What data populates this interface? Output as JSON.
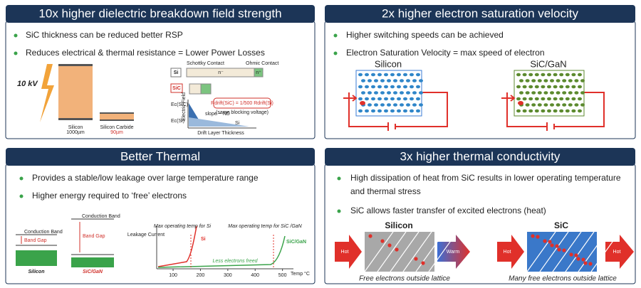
{
  "panels": [
    {
      "title": "10x higher dielectric breakdown field strength",
      "bullets": [
        "SiC thickness can be reduced better RSP",
        "Reduces electrical & thermal resistance = Lower Power Losses"
      ],
      "diagram": {
        "voltage": "10 kV",
        "si_label": "Silicon",
        "si_thickness": "1000µm",
        "sic_label": "Silicon Carbide",
        "sic_thickness": "90µm",
        "row_si": "Si",
        "row_sic": "SiC",
        "schottky": "Schottky Contact",
        "ohmic": "Ohmic Contact",
        "n_minus": "n⁻",
        "n_plus": "n⁺",
        "ec_sic": "Ec(SiC)",
        "ec_si": "Ec(Si)",
        "slope": "slope ~ ND",
        "drift": "Drift Layer Thickness",
        "field": "Electric Field",
        "formula": "Rdrift(SiC) = 1/500 Rdrift(Si)",
        "note": "(same blocking voltage)",
        "curve_si": "Si"
      }
    },
    {
      "title": "2x higher electron saturation velocity",
      "bullets": [
        "Higher switching speeds can be achieved",
        "Electron Saturation Velocity = max speed of electron"
      ],
      "diagram": {
        "left": "Silicon",
        "right": "SiC/GaN"
      }
    },
    {
      "title": "Better Thermal",
      "bullets": [
        "Provides a stable/low leakage over large temperature range",
        "Higher energy required to ‘free’ electrons"
      ],
      "diagram": {
        "cb_si": "Conduction Band",
        "gap_si": "Band Gap",
        "si": "Silicon",
        "cb_sic": "Conduction Band",
        "gap_sic": "Band Gap",
        "sic": "SiC/GaN",
        "y_label": "Leakage Current",
        "x_label": "Temp °C",
        "max_si": "Max operating temp for Si",
        "max_sic": "Max operating temp for SiC /GaN",
        "curve_si": "Si",
        "curve_sic": "SiC/GaN",
        "less": "Less electrons freed",
        "xlim": [
          40,
          540
        ],
        "xticks": [
          100,
          200,
          300,
          400,
          500
        ]
      }
    },
    {
      "title": "3x higher thermal conductivity",
      "bullets": [
        "High dissipation of heat from SiC results in lower operating temperature",
        "and thermal stress",
        "SiC allows faster transfer of excited electrons (heat)"
      ],
      "diagram": {
        "left": "Silicon",
        "right": "SiC",
        "hot1": "Hot",
        "warm": "Warm",
        "hot2": "Hot",
        "hot3": "Hot",
        "caption_left": "Free electrons outside lattice",
        "caption_right": "Many free electrons outside lattice"
      }
    }
  ]
}
